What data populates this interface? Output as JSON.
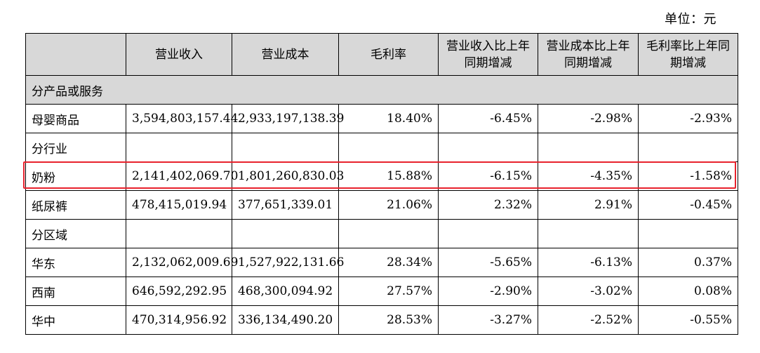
{
  "unit_label": "单位：元",
  "headers": [
    "",
    "营业收入",
    "营业成本",
    "毛利率",
    "营业收入比上年同期增减",
    "营业成本比上年同期增减",
    "毛利率比上年同期增减"
  ],
  "rows": [
    {
      "type": "section",
      "label": "分产品或服务"
    },
    {
      "type": "data",
      "label": "母婴商品",
      "cells": [
        "3,594,803,157.44",
        "2,933,197,138.39",
        "18.40%",
        "-6.45%",
        "-2.98%",
        "-2.93%"
      ]
    },
    {
      "type": "blank",
      "label": "分行业",
      "cells": [
        "",
        "",
        "",
        "",
        "",
        ""
      ]
    },
    {
      "type": "data",
      "label": "奶粉",
      "cells": [
        "2,141,402,069.70",
        "1,801,260,830.03",
        "15.88%",
        "-6.15%",
        "-4.35%",
        "-1.58%"
      ],
      "highlighted": true
    },
    {
      "type": "data",
      "label": "纸尿裤",
      "cells": [
        "478,415,019.94",
        "377,651,339.01",
        "21.06%",
        "2.32%",
        "2.91%",
        "-0.45%"
      ]
    },
    {
      "type": "blank",
      "label": "分区域",
      "cells": [
        "",
        "",
        "",
        "",
        "",
        ""
      ]
    },
    {
      "type": "data",
      "label": "华东",
      "cells": [
        "2,132,062,009.69",
        "1,527,922,131.66",
        "28.34%",
        "-5.65%",
        "-6.13%",
        "0.37%"
      ]
    },
    {
      "type": "data",
      "label": "西南",
      "cells": [
        "646,592,292.95",
        "468,300,094.92",
        "27.57%",
        "-2.90%",
        "-3.02%",
        "0.08%"
      ]
    },
    {
      "type": "data",
      "label": "华中",
      "cells": [
        "470,314,956.92",
        "336,134,490.20",
        "28.53%",
        "-3.27%",
        "-2.52%",
        "-0.55%"
      ]
    }
  ],
  "colors": {
    "header_bg": "#d8d8d8",
    "highlight_border": "#e8222d"
  }
}
